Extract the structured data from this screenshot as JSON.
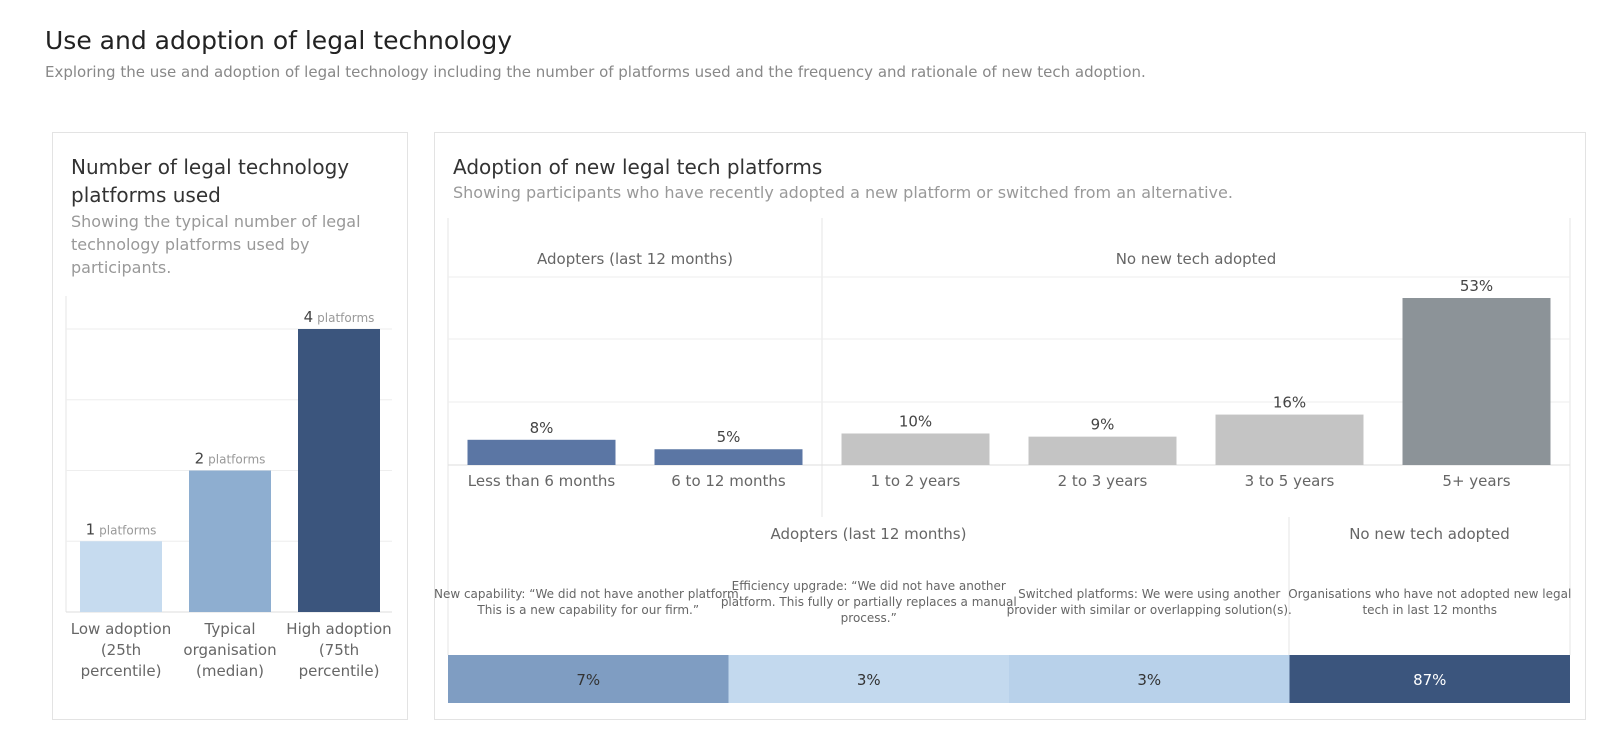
{
  "page": {
    "title": "Use and adoption of legal technology",
    "subtitle": "Exploring the use and adoption of legal technology including the number of platforms used and the frequency and rationale of new tech adoption."
  },
  "left_panel": {
    "title_line1": "Number of legal technology",
    "title_line2": "platforms used",
    "subtitle_line1": "Showing the typical number of legal",
    "subtitle_line2": "technology platforms used by",
    "subtitle_line3": "participants."
  },
  "right_panel": {
    "title": "Adoption of new legal tech platforms",
    "subtitle": "Showing participants who have recently adopted a new platform or switched from an alternative."
  },
  "chart_data": [
    {
      "type": "bar",
      "categories": [
        [
          "Low adoption",
          "(25th",
          "percentile)"
        ],
        [
          "Typical",
          "organisation",
          "(median)"
        ],
        [
          "High adoption",
          "(75th",
          "percentile)"
        ]
      ],
      "values": [
        1,
        2,
        4
      ],
      "value_unit": "platforms",
      "colors": [
        "#c6dbef",
        "#8eaed0",
        "#3b557d"
      ],
      "ylim": [
        0,
        4
      ],
      "grid": true
    },
    {
      "type": "bar",
      "groups": [
        {
          "label": "Adopters (last 12 months)",
          "categories": [
            "Less than 6 months",
            "6 to 12 months"
          ],
          "values": [
            8,
            5
          ],
          "labels": [
            "8%",
            "5%"
          ],
          "color": "#5b76a4"
        },
        {
          "label": "No new tech adopted",
          "categories": [
            "1 to 2 years",
            "2 to 3 years",
            "3 to 5 years",
            "5+ years"
          ],
          "values": [
            10,
            9,
            16,
            53
          ],
          "labels": [
            "10%",
            "9%",
            "16%",
            "53%"
          ],
          "color": "#c4c4c4",
          "highlight_color": "#8c9398"
        }
      ],
      "ylim": [
        0,
        53
      ],
      "grid": true
    },
    {
      "type": "bar",
      "orientation": "stacked-horizontal",
      "groups": [
        {
          "label": "Adopters (last 12 months)",
          "segments": [
            {
              "name": [
                "New capability: “We did not have another platform.",
                "This is a new capability for our firm.”"
              ],
              "value": 7,
              "label": "7%",
              "color": "#7f9dc2"
            },
            {
              "name": [
                "Efficiency upgrade: “We did not have another",
                "platform. This fully or partially replaces a manual",
                "process.”"
              ],
              "value": 3,
              "label": "3%",
              "color": "#c3d9ee"
            },
            {
              "name": [
                "Switched platforms: We were using another",
                "provider with similar or overlapping solution(s)."
              ],
              "value": 3,
              "label": "3%",
              "color": "#b8d1ea"
            }
          ]
        },
        {
          "label": "No new tech adopted",
          "segments": [
            {
              "name": [
                "Organisations who have not adopted new legal",
                "tech in last 12 months"
              ],
              "value": 87,
              "label": "87%",
              "color": "#3b557d"
            }
          ]
        }
      ]
    }
  ]
}
